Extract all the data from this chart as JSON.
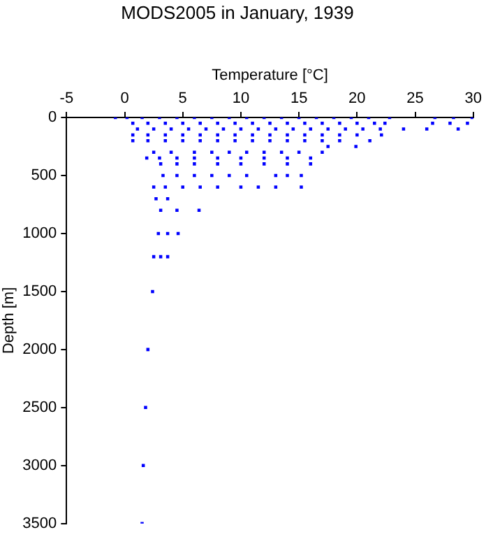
{
  "chart_data": {
    "type": "scatter",
    "title": "MODS2005 in January, 1939",
    "xlabel": "Temperature [°C]",
    "ylabel": "Depth [m]",
    "x": [
      -0.8,
      0.2,
      1.5,
      3,
      4.5,
      6,
      7.5,
      9,
      10.5,
      12,
      13.5,
      15,
      16.5,
      18,
      19.5,
      21,
      22.8,
      26.7,
      28.3,
      29.9,
      0.7,
      2,
      3.5,
      5,
      6.5,
      8,
      9.5,
      11,
      12.5,
      14,
      15.5,
      17,
      18.5,
      20,
      21.5,
      22.4,
      26.5,
      28,
      29.5,
      1.1,
      2.5,
      4,
      5.5,
      7,
      8.5,
      10,
      11.5,
      13,
      14.5,
      16,
      17.5,
      19,
      20.5,
      22,
      24,
      26,
      28.7,
      0.7,
      2,
      3.5,
      5,
      6.5,
      8,
      9.5,
      11,
      12.5,
      14,
      15.5,
      17,
      18.5,
      20,
      22.1,
      0.7,
      2,
      3.5,
      5,
      6.5,
      8,
      9.5,
      11,
      12.5,
      14,
      15.5,
      17,
      18.5,
      21.1,
      17.5,
      19.9,
      2.5,
      4,
      6,
      7.5,
      9,
      10.5,
      12,
      13.5,
      15,
      17,
      1.9,
      3,
      4.5,
      6,
      8,
      10,
      12,
      14,
      16,
      3.1,
      4.5,
      6,
      8,
      10,
      12,
      14,
      16,
      3.3,
      4.5,
      6,
      7.5,
      9,
      10.5,
      13,
      14,
      15.2,
      2.5,
      3.5,
      5,
      6.5,
      8,
      10,
      11.5,
      13,
      15.2,
      2.7,
      3.7,
      3.1,
      4.5,
      6.4,
      2.9,
      3.7,
      4.6,
      2.5,
      3.1,
      3.7,
      2.4,
      2.0,
      1.8,
      1.6,
      1.5
    ],
    "values": [
      0,
      0,
      0,
      0,
      0,
      0,
      0,
      0,
      0,
      0,
      0,
      0,
      0,
      0,
      0,
      0,
      0,
      0,
      0,
      0,
      50,
      50,
      50,
      50,
      50,
      50,
      50,
      50,
      50,
      50,
      50,
      50,
      50,
      50,
      50,
      50,
      50,
      50,
      50,
      100,
      100,
      100,
      100,
      100,
      100,
      100,
      100,
      100,
      100,
      100,
      100,
      100,
      100,
      100,
      100,
      100,
      100,
      150,
      150,
      150,
      150,
      150,
      150,
      150,
      150,
      150,
      150,
      150,
      150,
      150,
      150,
      150,
      200,
      200,
      200,
      200,
      200,
      200,
      200,
      200,
      200,
      200,
      200,
      200,
      200,
      200,
      250,
      250,
      300,
      300,
      300,
      300,
      300,
      300,
      300,
      300,
      300,
      300,
      350,
      350,
      350,
      350,
      350,
      350,
      350,
      350,
      350,
      400,
      400,
      400,
      400,
      400,
      400,
      400,
      400,
      500,
      500,
      500,
      500,
      500,
      500,
      500,
      500,
      500,
      600,
      600,
      600,
      600,
      600,
      600,
      600,
      600,
      600,
      700,
      700,
      800,
      800,
      800,
      1000,
      1000,
      1000,
      1200,
      1200,
      1200,
      1500,
      2000,
      2500,
      3000,
      3500
    ],
    "color": "#0000ff",
    "marker": "square",
    "xlim": [
      -5,
      30
    ],
    "xticks": [
      -5,
      0,
      5,
      10,
      15,
      20,
      25,
      30
    ],
    "ylim": [
      3500,
      0
    ],
    "yticks": [
      0,
      500,
      1000,
      1500,
      2000,
      2500,
      3000,
      3500
    ]
  }
}
